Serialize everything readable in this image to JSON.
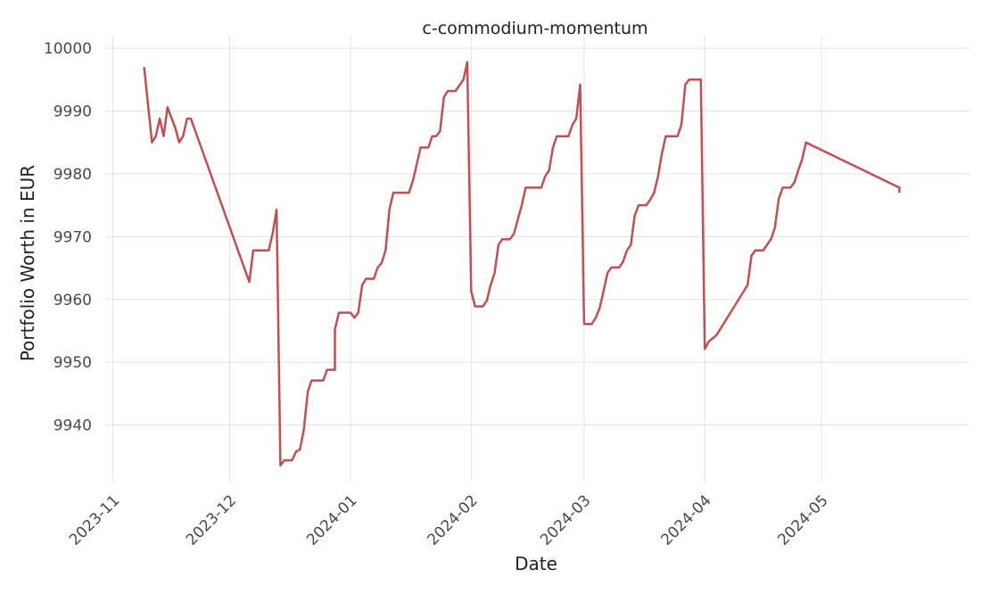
{
  "chart_data": {
    "type": "line",
    "title": "c-commodium-momentum",
    "xlabel": "Date",
    "ylabel": "Portfolio Worth in EUR",
    "grid": true,
    "legend": "none",
    "ylim": [
      9931,
      10002
    ],
    "xlim": [
      "2023-10-30",
      "2024-06-08"
    ],
    "yticks": [
      9940,
      9950,
      9960,
      9970,
      9980,
      9990,
      10000
    ],
    "xticks": [
      "2023-11",
      "2023-12",
      "2024-01",
      "2024-02",
      "2024-03",
      "2024-04",
      "2024-05"
    ],
    "xtick_dates": [
      "2023-11-01",
      "2023-12-01",
      "2024-01-01",
      "2024-02-01",
      "2024-03-01",
      "2024-04-01",
      "2024-05-01"
    ],
    "series": [
      {
        "color": "#c44e52",
        "points": [
          [
            "2023-11-09",
            9997.0
          ],
          [
            "2023-11-11",
            9985.0
          ],
          [
            "2023-11-12",
            9986.0
          ],
          [
            "2023-11-13",
            9988.8
          ],
          [
            "2023-11-14",
            9986.0
          ],
          [
            "2023-11-15",
            9990.6
          ],
          [
            "2023-11-17",
            9987.3
          ],
          [
            "2023-11-18",
            9985.0
          ],
          [
            "2023-11-19",
            9986.0
          ],
          [
            "2023-11-20",
            9988.8
          ],
          [
            "2023-11-21",
            9988.8
          ],
          [
            "2023-12-06",
            9962.8
          ],
          [
            "2023-12-07",
            9967.8
          ],
          [
            "2023-12-08",
            9967.8
          ],
          [
            "2023-12-11",
            9967.8
          ],
          [
            "2023-12-12",
            9970.5
          ],
          [
            "2023-12-13",
            9974.3
          ],
          [
            "2023-12-14",
            9933.6
          ],
          [
            "2023-12-15",
            9934.4
          ],
          [
            "2023-12-17",
            9934.4
          ],
          [
            "2023-12-18",
            9935.8
          ],
          [
            "2023-12-19",
            9936.1
          ],
          [
            "2023-12-20",
            9939.2
          ],
          [
            "2023-12-21",
            9945.2
          ],
          [
            "2023-12-22",
            9947.1
          ],
          [
            "2023-12-25",
            9947.1
          ],
          [
            "2023-12-26",
            9948.8
          ],
          [
            "2023-12-28",
            9948.8
          ],
          [
            "2023-12-28",
            9955.2
          ],
          [
            "2023-12-29",
            9957.9
          ],
          [
            "2024-01-01",
            9957.9
          ],
          [
            "2024-01-02",
            9957.1
          ],
          [
            "2024-01-03",
            9957.9
          ],
          [
            "2024-01-04",
            9962.3
          ],
          [
            "2024-01-05",
            9963.3
          ],
          [
            "2024-01-07",
            9963.3
          ],
          [
            "2024-01-08",
            9965.1
          ],
          [
            "2024-01-09",
            9965.8
          ],
          [
            "2024-01-10",
            9967.8
          ],
          [
            "2024-01-11",
            9974.3
          ],
          [
            "2024-01-12",
            9977.0
          ],
          [
            "2024-01-16",
            9977.0
          ],
          [
            "2024-01-17",
            9978.8
          ],
          [
            "2024-01-18",
            9981.5
          ],
          [
            "2024-01-19",
            9984.2
          ],
          [
            "2024-01-21",
            9984.2
          ],
          [
            "2024-01-22",
            9986.0
          ],
          [
            "2024-01-23",
            9986.0
          ],
          [
            "2024-01-24",
            9986.8
          ],
          [
            "2024-01-25",
            9992.2
          ],
          [
            "2024-01-26",
            9993.2
          ],
          [
            "2024-01-28",
            9993.2
          ],
          [
            "2024-01-30",
            9995.0
          ],
          [
            "2024-01-31",
            9997.8
          ],
          [
            "2024-02-01",
            9961.3
          ],
          [
            "2024-02-02",
            9958.9
          ],
          [
            "2024-02-04",
            9958.9
          ],
          [
            "2024-02-05",
            9959.8
          ],
          [
            "2024-02-06",
            9962.3
          ],
          [
            "2024-02-07",
            9964.2
          ],
          [
            "2024-02-08",
            9968.7
          ],
          [
            "2024-02-09",
            9969.6
          ],
          [
            "2024-02-11",
            9969.6
          ],
          [
            "2024-02-12",
            9970.5
          ],
          [
            "2024-02-14",
            9975.0
          ],
          [
            "2024-02-15",
            9977.8
          ],
          [
            "2024-02-19",
            9977.8
          ],
          [
            "2024-02-20",
            9979.6
          ],
          [
            "2024-02-21",
            9980.5
          ],
          [
            "2024-02-22",
            9984.2
          ],
          [
            "2024-02-23",
            9986.0
          ],
          [
            "2024-02-26",
            9986.0
          ],
          [
            "2024-02-27",
            9987.8
          ],
          [
            "2024-02-28",
            9988.8
          ],
          [
            "2024-02-29",
            9994.2
          ],
          [
            "2024-03-01",
            9956.1
          ],
          [
            "2024-03-03",
            9956.1
          ],
          [
            "2024-03-04",
            9957.1
          ],
          [
            "2024-03-05",
            9958.6
          ],
          [
            "2024-03-06",
            9961.3
          ],
          [
            "2024-03-07",
            9964.2
          ],
          [
            "2024-03-08",
            9965.1
          ],
          [
            "2024-03-10",
            9965.1
          ],
          [
            "2024-03-11",
            9966.0
          ],
          [
            "2024-03-12",
            9967.8
          ],
          [
            "2024-03-13",
            9968.7
          ],
          [
            "2024-03-14",
            9973.3
          ],
          [
            "2024-03-15",
            9975.0
          ],
          [
            "2024-03-17",
            9975.0
          ],
          [
            "2024-03-18",
            9975.9
          ],
          [
            "2024-03-19",
            9977.0
          ],
          [
            "2024-03-20",
            9979.6
          ],
          [
            "2024-03-21",
            9983.3
          ],
          [
            "2024-03-22",
            9986.0
          ],
          [
            "2024-03-25",
            9986.0
          ],
          [
            "2024-03-26",
            9987.8
          ],
          [
            "2024-03-27",
            9994.2
          ],
          [
            "2024-03-28",
            9995.0
          ],
          [
            "2024-03-31",
            9995.0
          ],
          [
            "2024-04-01",
            9952.1
          ],
          [
            "2024-04-02",
            9953.3
          ],
          [
            "2024-04-04",
            9954.3
          ],
          [
            "2024-04-12",
            9962.3
          ],
          [
            "2024-04-13",
            9967.0
          ],
          [
            "2024-04-14",
            9967.8
          ],
          [
            "2024-04-16",
            9967.8
          ],
          [
            "2024-04-17",
            9968.7
          ],
          [
            "2024-04-18",
            9969.6
          ],
          [
            "2024-04-19",
            9971.4
          ],
          [
            "2024-04-20",
            9976.0
          ],
          [
            "2024-04-21",
            9977.8
          ],
          [
            "2024-04-23",
            9977.8
          ],
          [
            "2024-04-24",
            9978.6
          ],
          [
            "2024-04-25",
            9980.5
          ],
          [
            "2024-04-26",
            9982.3
          ],
          [
            "2024-04-27",
            9985.0
          ],
          [
            "2024-05-21",
            9977.8
          ],
          [
            "2024-05-21",
            9977.0
          ]
        ]
      }
    ]
  }
}
